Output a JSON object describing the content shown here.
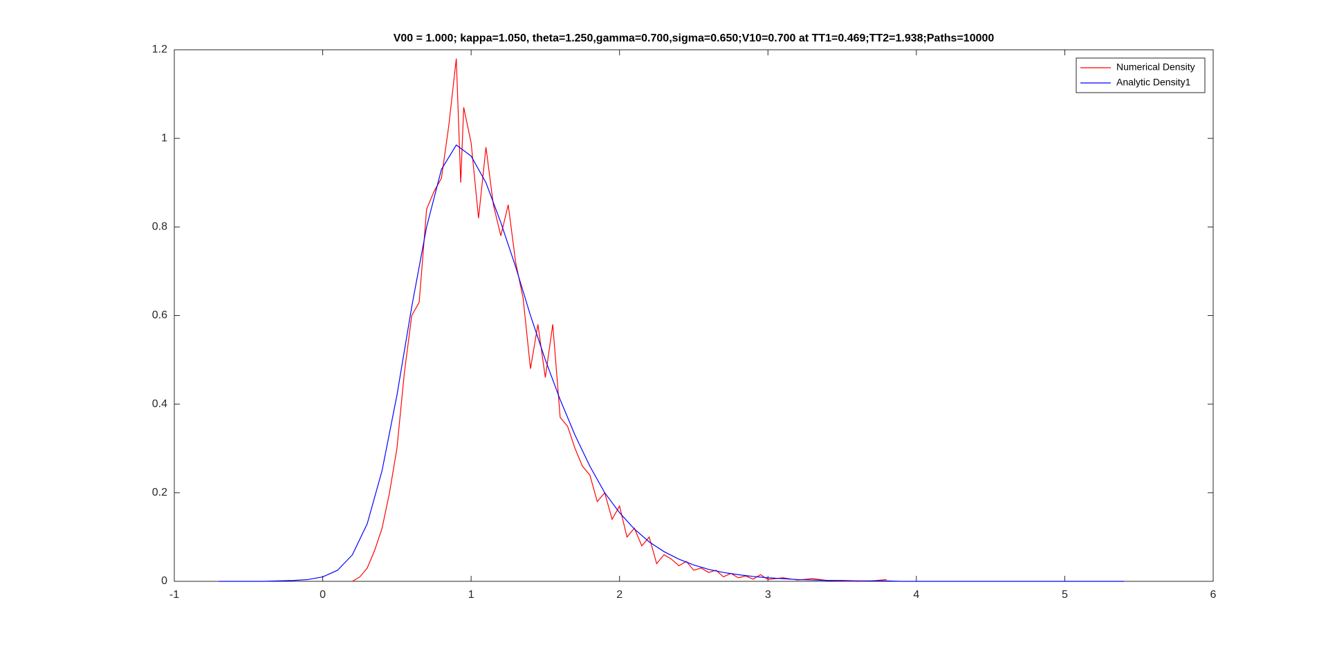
{
  "chart_data": {
    "type": "line",
    "title": "V00 = 1.000; kappa=1.050, theta=1.250,gamma=0.700,sigma=0.650;V10=0.700 at TT1=0.469;TT2=1.938;Paths=10000",
    "xlim": [
      -1,
      6
    ],
    "ylim": [
      0,
      1.2
    ],
    "xticks": [
      -1,
      0,
      1,
      2,
      3,
      4,
      5,
      6
    ],
    "yticks": [
      0,
      0.2,
      0.4,
      0.6,
      0.8,
      1,
      1.2
    ],
    "grid": false,
    "legend": "top-right",
    "series": [
      {
        "name": "Numerical Density",
        "color": "#ff0000",
        "x": [
          0.2,
          0.25,
          0.3,
          0.35,
          0.4,
          0.45,
          0.5,
          0.55,
          0.6,
          0.65,
          0.7,
          0.75,
          0.8,
          0.85,
          0.9,
          0.93,
          0.95,
          1.0,
          1.05,
          1.1,
          1.15,
          1.2,
          1.25,
          1.3,
          1.35,
          1.4,
          1.45,
          1.5,
          1.55,
          1.6,
          1.65,
          1.7,
          1.75,
          1.8,
          1.85,
          1.9,
          1.95,
          2.0,
          2.05,
          2.1,
          2.15,
          2.2,
          2.25,
          2.3,
          2.35,
          2.4,
          2.45,
          2.5,
          2.55,
          2.6,
          2.65,
          2.7,
          2.75,
          2.8,
          2.85,
          2.9,
          2.95,
          3.0,
          3.1,
          3.2,
          3.3,
          3.4,
          3.5,
          3.6,
          3.7,
          3.8
        ],
        "values": [
          0,
          0.01,
          0.03,
          0.07,
          0.12,
          0.2,
          0.3,
          0.47,
          0.6,
          0.63,
          0.84,
          0.88,
          0.91,
          1.03,
          1.18,
          0.9,
          1.07,
          0.99,
          0.82,
          0.98,
          0.85,
          0.78,
          0.85,
          0.72,
          0.64,
          0.48,
          0.58,
          0.46,
          0.58,
          0.37,
          0.35,
          0.3,
          0.26,
          0.24,
          0.18,
          0.2,
          0.14,
          0.17,
          0.1,
          0.12,
          0.08,
          0.1,
          0.04,
          0.06,
          0.05,
          0.035,
          0.045,
          0.025,
          0.03,
          0.02,
          0.025,
          0.01,
          0.018,
          0.008,
          0.012,
          0.005,
          0.015,
          0.004,
          0.008,
          0.003,
          0.006,
          0.002,
          0.001,
          0,
          0.001,
          0.004
        ]
      },
      {
        "name": "Analytic Density1",
        "color": "#0000ff",
        "x": [
          -0.7,
          -0.6,
          -0.5,
          -0.4,
          -0.3,
          -0.2,
          -0.1,
          0,
          0.1,
          0.2,
          0.3,
          0.4,
          0.5,
          0.6,
          0.7,
          0.8,
          0.9,
          1.0,
          1.1,
          1.2,
          1.3,
          1.4,
          1.5,
          1.6,
          1.7,
          1.8,
          1.9,
          2.0,
          2.1,
          2.2,
          2.3,
          2.4,
          2.5,
          2.6,
          2.7,
          2.8,
          2.9,
          3.0,
          3.1,
          3.2,
          3.3,
          3.4,
          3.5,
          3.6,
          3.7,
          3.8,
          3.9,
          4.0,
          4.5,
          5.0,
          5.4
        ],
        "values": [
          0,
          0,
          0,
          0,
          0.001,
          0.002,
          0.004,
          0.01,
          0.025,
          0.06,
          0.13,
          0.25,
          0.42,
          0.62,
          0.8,
          0.93,
          0.985,
          0.96,
          0.9,
          0.81,
          0.71,
          0.6,
          0.5,
          0.41,
          0.33,
          0.26,
          0.2,
          0.155,
          0.118,
          0.089,
          0.067,
          0.05,
          0.037,
          0.027,
          0.02,
          0.015,
          0.011,
          0.008,
          0.006,
          0.004,
          0.003,
          0.002,
          0.002,
          0.001,
          0.001,
          0.001,
          0,
          0,
          0,
          0,
          0
        ]
      }
    ]
  }
}
